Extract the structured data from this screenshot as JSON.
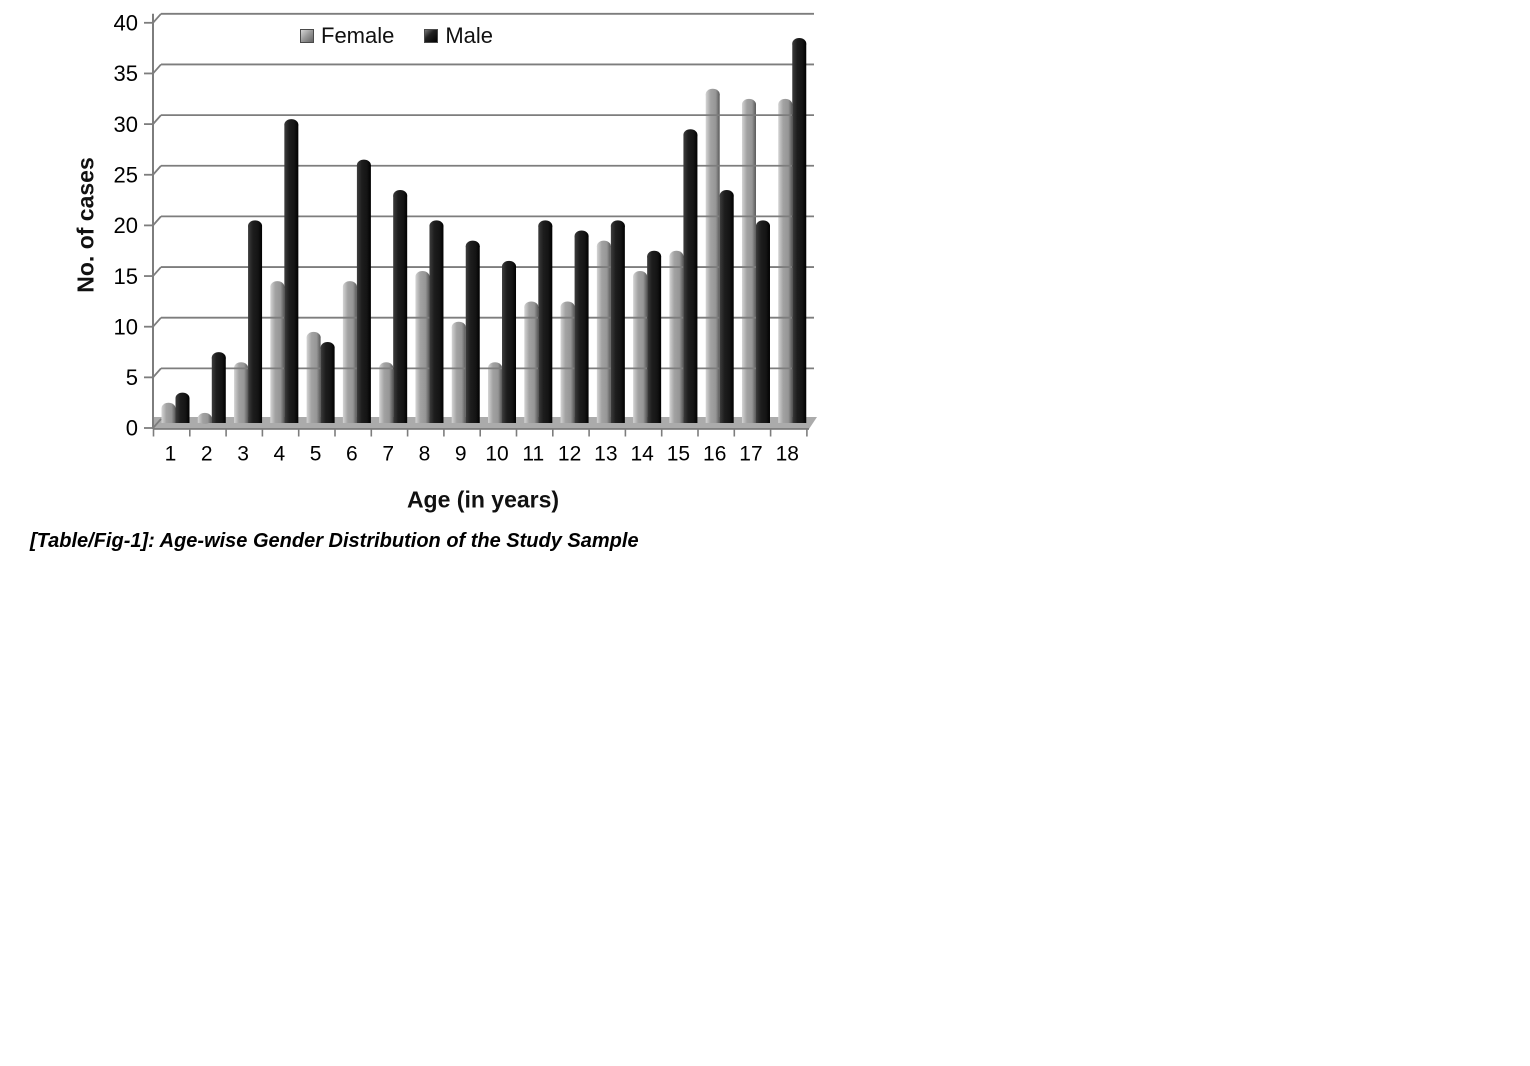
{
  "page": {
    "background": "#ffffff"
  },
  "chart_data": {
    "type": "bar",
    "caption": "[Table/Fig-1]: Age-wise Gender Distribution of the Study Sample",
    "xlabel": "Age (in years)",
    "ylabel": "No. of cases",
    "categories": [
      "1",
      "2",
      "3",
      "4",
      "5",
      "6",
      "7",
      "8",
      "9",
      "10",
      "11",
      "12",
      "13",
      "14",
      "15",
      "16",
      "17",
      "18"
    ],
    "series": [
      {
        "name": "Female",
        "color": "#9e9e9e",
        "gradient": [
          "#d4d4d4",
          "#a2a2a2",
          "#969696",
          "#585858"
        ],
        "values": [
          2,
          1,
          6,
          14,
          9,
          14,
          6,
          15,
          10,
          6,
          12,
          12,
          18,
          15,
          17,
          33,
          32,
          32
        ]
      },
      {
        "name": "Male",
        "color": "#1a1a1a",
        "gradient": [
          "#3d3d3d",
          "#1d1d1d",
          "#141414",
          "#000000"
        ],
        "values": [
          3,
          7,
          20,
          30,
          8,
          26,
          23,
          20,
          18,
          16,
          20,
          19,
          20,
          17,
          29,
          23,
          20,
          38
        ]
      }
    ],
    "ylim": [
      0,
      40
    ],
    "y_ticks": [
      0,
      5,
      10,
      15,
      20,
      25,
      30,
      35,
      40
    ],
    "grid": true,
    "legend_position": "top-center",
    "colors": {
      "gridline": "#7d7d7d",
      "axis": "#7d7d7d",
      "floor": "#ababab",
      "floor_edge": "#6e6e6e",
      "text": "#000000"
    }
  }
}
